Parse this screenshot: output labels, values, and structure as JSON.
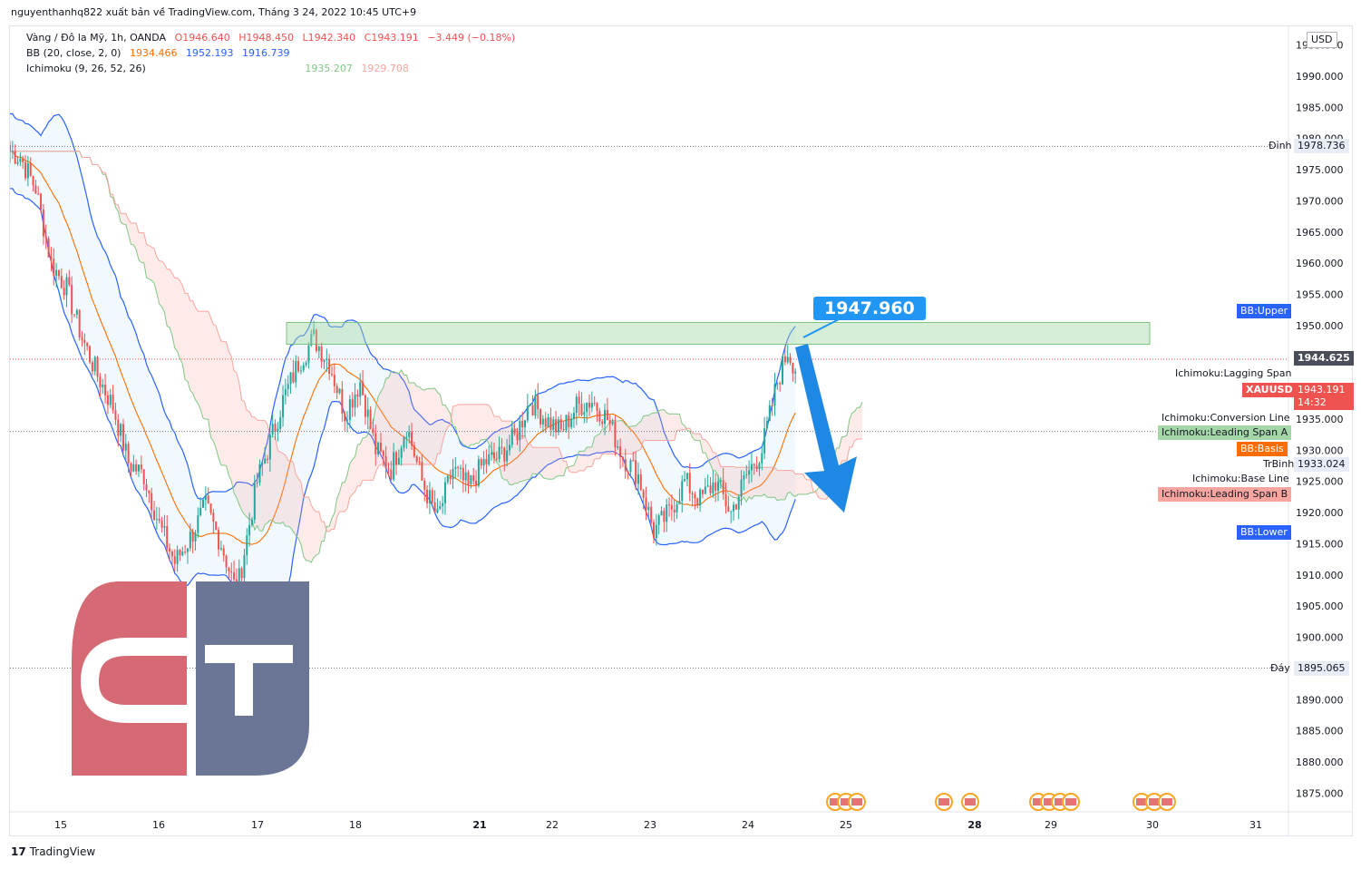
{
  "header": {
    "text": "nguyenthanhq822 xuất bản về TradingView.com, Tháng 3 24, 2022 10:45 UTC+9"
  },
  "legend": {
    "symbol": "Vàng / Đô la Mỹ, 1h, OANDA",
    "ohlc": {
      "o": "O1946.640",
      "h": "H1948.450",
      "l": "L1942.340",
      "c": "C1943.191",
      "chg": "−3.449 (−0.18%)"
    },
    "bb": {
      "label": "BB (20, close, 2, 0)",
      "basis": "1934.466",
      "upper": "1952.193",
      "lower": "1916.739"
    },
    "ichimoku": {
      "label": "Ichimoku (9, 26, 52, 26)",
      "a": "1935.207",
      "b": "1929.708"
    }
  },
  "currency": "USD",
  "callout": "1947.960",
  "footer": "TradingView",
  "levels": {
    "dinh": "Đỉnh",
    "dinh_value": "1978.736",
    "day": "Đáy",
    "day_value": "1895.065",
    "trbinh": "TrBinh",
    "trbinh_value": "1933.024",
    "last": "1944.625"
  },
  "price_label": {
    "symbol": "XAUUSD",
    "value": "1943.191",
    "time": "14:32"
  },
  "line_labels": {
    "bb_upper": "BB:Upper",
    "lagging": "Ichimoku:Lagging Span",
    "conversion": "Ichimoku:Conversion Line",
    "leading_a": "Ichimoku:Leading Span A",
    "bb_basis": "BB:Basis",
    "base_line": "Ichimoku:Base Line",
    "leading_b": "Ichimoku:Leading Span B",
    "bb_lower": "BB:Lower"
  },
  "colors": {
    "up": "#26a69a",
    "down": "#ef5350",
    "bb": "#2962ff",
    "basis": "#ff6d00",
    "span_a": "#81c784",
    "span_b": "#f7a59f",
    "zone": "#a5d6a7",
    "arrow": "#1e88e5",
    "logo_red": "#d56a74",
    "logo_blue": "#6b7596"
  },
  "chart_data": {
    "type": "candlestick",
    "symbol": "XAUUSD",
    "timeframe": "1h",
    "ylim": [
      1872,
      1998
    ],
    "y_ticks": [
      1875,
      1880,
      1885,
      1890,
      1895,
      1900,
      1905,
      1910,
      1915,
      1920,
      1925,
      1930,
      1935,
      1940,
      1945,
      1950,
      1955,
      1960,
      1965,
      1970,
      1975,
      1980,
      1985,
      1990,
      1995
    ],
    "y_tick_labels": [
      "1875.000",
      "1880.000",
      "1885.000",
      "1890.000",
      "1895.000",
      "1900.000",
      "1905.000",
      "1910.000",
      "1915.000",
      "1920.000",
      "1925.000",
      "1930.000",
      "1935.000",
      "1940.000",
      "1945.000",
      "1950.000",
      "1955.000",
      "1960.000",
      "1965.000",
      "1970.000",
      "1975.000",
      "1980.000",
      "1985.000",
      "1990.000",
      "1995.000"
    ],
    "x_tick_labels": [
      "15",
      "16",
      "17",
      "18",
      "21",
      "22",
      "23",
      "24",
      "25",
      "28",
      "29",
      "30",
      "31"
    ],
    "series_path": [
      [
        0,
        1978
      ],
      [
        4,
        1977
      ],
      [
        10,
        1972
      ],
      [
        16,
        1960
      ],
      [
        22,
        1956
      ],
      [
        28,
        1948
      ],
      [
        34,
        1942
      ],
      [
        40,
        1937
      ],
      [
        46,
        1928
      ],
      [
        52,
        1926
      ],
      [
        58,
        1918
      ],
      [
        64,
        1912
      ],
      [
        70,
        1916
      ],
      [
        76,
        1921
      ],
      [
        82,
        1915
      ],
      [
        88,
        1907
      ],
      [
        92,
        1916
      ],
      [
        96,
        1925
      ],
      [
        100,
        1930
      ],
      [
        106,
        1938
      ],
      [
        112,
        1944
      ],
      [
        118,
        1948
      ],
      [
        124,
        1944
      ],
      [
        130,
        1936
      ],
      [
        136,
        1941
      ],
      [
        142,
        1930
      ],
      [
        148,
        1927
      ],
      [
        154,
        1934
      ],
      [
        160,
        1925
      ],
      [
        166,
        1919
      ],
      [
        172,
        1927
      ],
      [
        178,
        1924
      ],
      [
        184,
        1928
      ],
      [
        190,
        1929
      ],
      [
        196,
        1932
      ],
      [
        202,
        1938
      ],
      [
        208,
        1935
      ],
      [
        214,
        1933
      ],
      [
        220,
        1937
      ],
      [
        226,
        1938
      ],
      [
        232,
        1935
      ],
      [
        238,
        1929
      ],
      [
        244,
        1926
      ],
      [
        250,
        1917
      ],
      [
        256,
        1920
      ],
      [
        262,
        1925
      ],
      [
        268,
        1922
      ],
      [
        274,
        1925
      ],
      [
        280,
        1920
      ],
      [
        286,
        1926
      ],
      [
        292,
        1930
      ],
      [
        298,
        1941
      ],
      [
        302,
        1946
      ],
      [
        305,
        1943.191
      ]
    ],
    "resistance_zone": [
      1947,
      1950.5
    ],
    "callout_value": 1947.96,
    "projection": {
      "from": 1946.5,
      "to": 1920
    },
    "horizontal_levels": {
      "dinh": 1978.736,
      "day": 1895.065,
      "trbinh": 1933.024,
      "last": 1944.625
    },
    "indicators": {
      "bb_basis": 1934.466,
      "bb_upper": 1952.193,
      "bb_lower": 1916.739,
      "ichimoku_leading_a": 1935.207,
      "ichimoku_leading_b": 1929.708
    }
  }
}
